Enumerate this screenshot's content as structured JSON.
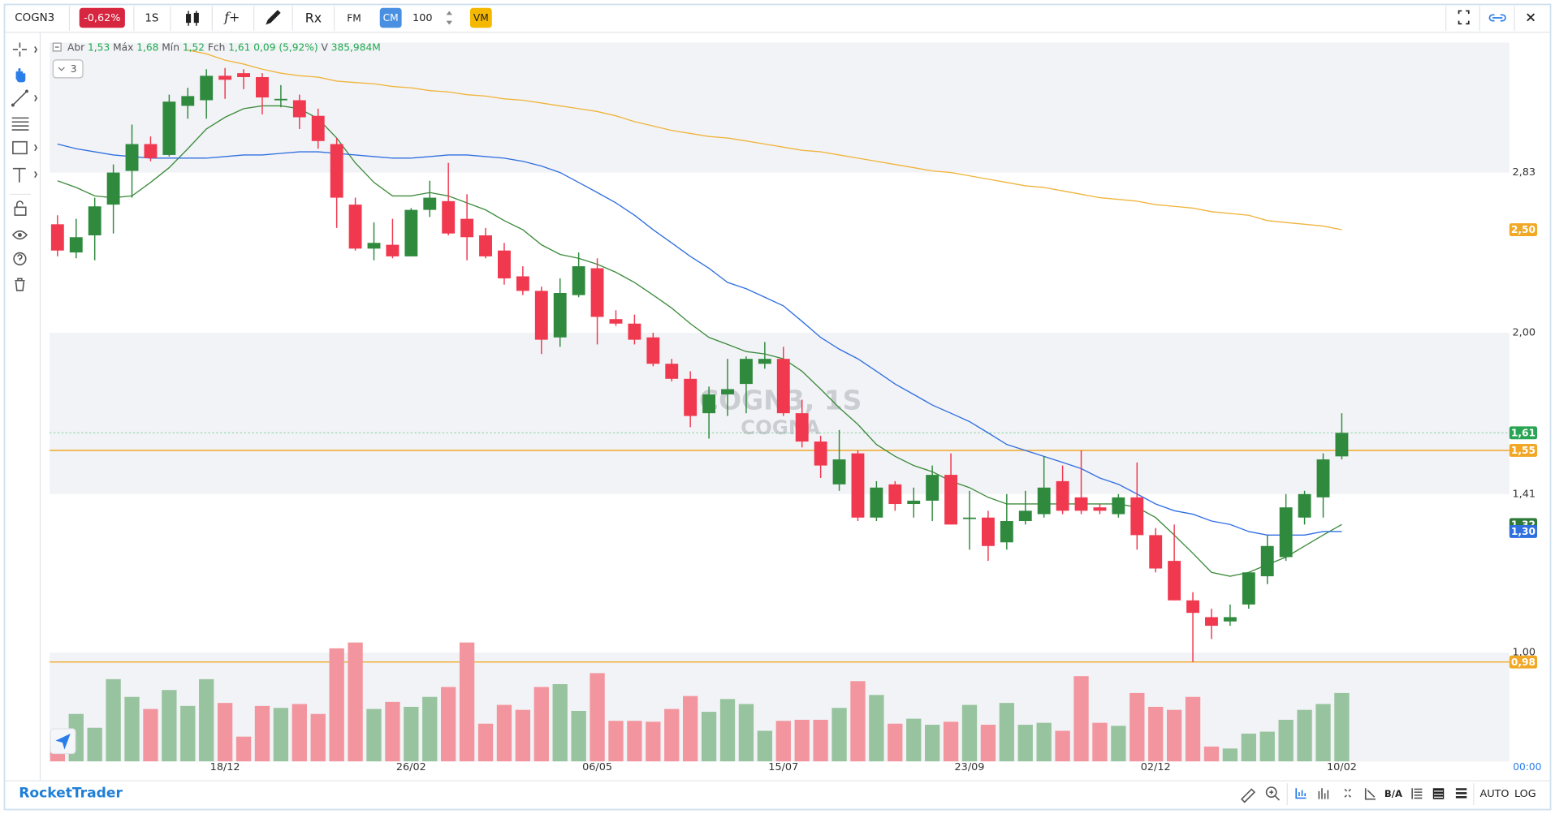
{
  "toolbar": {
    "symbol": "COGN3",
    "change": "-0,62%",
    "interval": "1S",
    "function": "f+",
    "rx": "Rx",
    "fm": "FM",
    "cm": "CM",
    "count": "100",
    "vm": "VM"
  },
  "legend": {
    "open_label": "Abr",
    "open": "1,53",
    "high_label": "Máx",
    "high": "1,68",
    "low_label": "Mín",
    "low": "1,52",
    "close_label": "Fch",
    "close": "1,61",
    "change": "0,09 (5,92%)",
    "volume_label": "V",
    "volume": "385,984M",
    "studies": "3"
  },
  "chart_data": {
    "type": "candlestick",
    "watermark_title": "COGN3, 1S",
    "watermark_subtitle": "COGNA",
    "categories": [
      null,
      null,
      null,
      null,
      null,
      null,
      null,
      null,
      null,
      "18/12",
      null,
      null,
      null,
      null,
      null,
      null,
      null,
      null,
      null,
      "26/02",
      null,
      null,
      null,
      null,
      null,
      null,
      null,
      null,
      null,
      "06/05",
      null,
      null,
      null,
      null,
      null,
      null,
      null,
      null,
      null,
      "15/07",
      null,
      null,
      null,
      null,
      null,
      null,
      null,
      null,
      null,
      "23/09",
      null,
      null,
      null,
      null,
      null,
      null,
      null,
      null,
      null,
      "02/12",
      null,
      null,
      null,
      null,
      null,
      null,
      null,
      null,
      null,
      "10/02"
    ],
    "open": [
      2.53,
      2.38,
      2.47,
      2.64,
      2.84,
      3.01,
      2.94,
      3.27,
      3.31,
      3.49,
      3.51,
      3.48,
      3.31,
      3.31,
      3.2,
      3.01,
      2.64,
      2.4,
      2.42,
      2.36,
      2.61,
      2.66,
      2.56,
      2.47,
      2.39,
      2.26,
      2.19,
      1.98,
      2.17,
      2.3,
      2.06,
      2.04,
      1.98,
      1.87,
      1.81,
      1.68,
      1.75,
      1.79,
      1.87,
      1.89,
      1.68,
      1.58,
      1.44,
      1.54,
      1.34,
      1.44,
      1.38,
      1.39,
      1.47,
      1.34,
      1.34,
      1.27,
      1.33,
      1.35,
      1.45,
      1.4,
      1.37,
      1.35,
      1.4,
      1.29,
      1.22,
      1.12,
      1.08,
      1.07,
      1.11,
      1.18,
      1.23,
      1.34,
      1.4,
      1.53
    ],
    "high": [
      2.58,
      2.56,
      2.68,
      2.88,
      3.14,
      3.06,
      3.35,
      3.4,
      3.54,
      3.55,
      3.54,
      3.51,
      3.42,
      3.35,
      3.25,
      3.05,
      2.68,
      2.54,
      2.56,
      2.62,
      2.78,
      2.89,
      2.7,
      2.51,
      2.43,
      2.31,
      2.21,
      2.25,
      2.38,
      2.35,
      2.1,
      2.08,
      2.0,
      1.89,
      1.84,
      1.78,
      1.89,
      1.9,
      1.96,
      1.94,
      1.73,
      1.6,
      1.62,
      1.55,
      1.45,
      1.45,
      1.43,
      1.5,
      1.54,
      1.42,
      1.36,
      1.41,
      1.42,
      1.53,
      1.5,
      1.55,
      1.38,
      1.41,
      1.51,
      1.31,
      1.32,
      1.14,
      1.1,
      1.11,
      1.19,
      1.29,
      1.41,
      1.42,
      1.54,
      1.68
    ],
    "low": [
      2.36,
      2.35,
      2.34,
      2.48,
      2.68,
      2.9,
      2.93,
      3.18,
      3.18,
      3.32,
      3.39,
      3.21,
      3.26,
      3.11,
      2.98,
      2.51,
      2.39,
      2.34,
      2.35,
      2.36,
      2.57,
      2.47,
      2.34,
      2.35,
      2.22,
      2.17,
      1.91,
      1.94,
      2.16,
      1.95,
      2.03,
      1.95,
      1.86,
      1.8,
      1.63,
      1.59,
      1.67,
      1.68,
      1.85,
      1.67,
      1.56,
      1.46,
      1.42,
      1.33,
      1.33,
      1.36,
      1.34,
      1.33,
      1.32,
      1.25,
      1.22,
      1.25,
      1.32,
      1.34,
      1.35,
      1.35,
      1.35,
      1.34,
      1.25,
      1.19,
      1.12,
      0.98,
      1.03,
      1.06,
      1.1,
      1.16,
      1.22,
      1.32,
      1.34,
      1.52
    ],
    "close": [
      2.39,
      2.46,
      2.63,
      2.83,
      3.01,
      2.92,
      3.3,
      3.34,
      3.49,
      3.46,
      3.48,
      3.33,
      3.32,
      3.19,
      3.03,
      2.68,
      2.4,
      2.43,
      2.36,
      2.61,
      2.68,
      2.48,
      2.46,
      2.36,
      2.25,
      2.19,
      1.97,
      2.18,
      2.31,
      2.07,
      2.04,
      1.97,
      1.87,
      1.81,
      1.67,
      1.75,
      1.77,
      1.89,
      1.89,
      1.68,
      1.58,
      1.5,
      1.52,
      1.34,
      1.43,
      1.38,
      1.39,
      1.47,
      1.32,
      1.34,
      1.26,
      1.33,
      1.36,
      1.43,
      1.36,
      1.36,
      1.36,
      1.4,
      1.29,
      1.2,
      1.12,
      1.09,
      1.06,
      1.08,
      1.19,
      1.26,
      1.37,
      1.41,
      1.52,
      1.61
    ],
    "volume": [
      90,
      268,
      190,
      464,
      364,
      296,
      403,
      313,
      464,
      330,
      140,
      313,
      302,
      324,
      268,
      638,
      671,
      296,
      336,
      308,
      364,
      420,
      671,
      213,
      319,
      291,
      420,
      436,
      285,
      498,
      229,
      229,
      224,
      296,
      369,
      280,
      352,
      324,
      173,
      229,
      235,
      235,
      302,
      453,
      375,
      213,
      241,
      207,
      224,
      319,
      207,
      330,
      207,
      218,
      173,
      481,
      218,
      201,
      386,
      308,
      291,
      364,
      84,
      73,
      157,
      168,
      235,
      291,
      324,
      385.984
    ],
    "up_color": "#2f8a3e",
    "down_color": "#f0384f",
    "volume_up_color": "#97c49e",
    "volume_down_color": "#f3959e",
    "averages": [
      {
        "color": "#3d8b3d",
        "values": [
          2.78,
          2.74,
          2.69,
          2.68,
          2.69,
          2.77,
          2.86,
          2.98,
          3.11,
          3.19,
          3.25,
          3.27,
          3.27,
          3.25,
          3.18,
          3.05,
          2.89,
          2.77,
          2.69,
          2.69,
          2.71,
          2.69,
          2.65,
          2.61,
          2.55,
          2.5,
          2.42,
          2.37,
          2.35,
          2.32,
          2.28,
          2.23,
          2.17,
          2.11,
          2.04,
          1.98,
          1.95,
          1.92,
          1.91,
          1.89,
          1.84,
          1.77,
          1.7,
          1.64,
          1.57,
          1.53,
          1.5,
          1.48,
          1.45,
          1.43,
          1.4,
          1.38,
          1.38,
          1.38,
          1.38,
          1.38,
          1.38,
          1.38,
          1.37,
          1.34,
          1.29,
          1.24,
          1.19,
          1.18,
          1.19,
          1.21,
          1.23,
          1.26,
          1.29,
          1.32
        ]
      },
      {
        "color": "#2f6fe0",
        "values": [
          3.01,
          2.98,
          2.96,
          2.94,
          2.93,
          2.92,
          2.92,
          2.92,
          2.92,
          2.93,
          2.94,
          2.94,
          2.95,
          2.96,
          2.96,
          2.95,
          2.94,
          2.93,
          2.92,
          2.92,
          2.93,
          2.94,
          2.94,
          2.93,
          2.92,
          2.9,
          2.87,
          2.83,
          2.77,
          2.71,
          2.65,
          2.58,
          2.5,
          2.43,
          2.36,
          2.3,
          2.23,
          2.2,
          2.16,
          2.12,
          2.05,
          1.98,
          1.93,
          1.89,
          1.84,
          1.79,
          1.75,
          1.71,
          1.68,
          1.65,
          1.61,
          1.57,
          1.55,
          1.53,
          1.51,
          1.49,
          1.46,
          1.44,
          1.41,
          1.38,
          1.36,
          1.35,
          1.33,
          1.32,
          1.3,
          1.29,
          1.29,
          1.29,
          1.3,
          1.3
        ]
      },
      {
        "color": "#f0b43c",
        "values": [
          null,
          null,
          null,
          null,
          null,
          null,
          null,
          3.69,
          3.66,
          3.61,
          3.58,
          3.54,
          3.51,
          3.49,
          3.48,
          3.45,
          3.44,
          3.43,
          3.41,
          3.4,
          3.38,
          3.37,
          3.35,
          3.34,
          3.32,
          3.31,
          3.29,
          3.27,
          3.25,
          3.23,
          3.2,
          3.16,
          3.13,
          3.1,
          3.08,
          3.06,
          3.05,
          3.03,
          3.01,
          2.99,
          2.97,
          2.96,
          2.94,
          2.92,
          2.9,
          2.88,
          2.86,
          2.84,
          2.83,
          2.81,
          2.79,
          2.77,
          2.75,
          2.74,
          2.72,
          2.7,
          2.68,
          2.67,
          2.66,
          2.64,
          2.63,
          2.62,
          2.6,
          2.59,
          2.58,
          2.55,
          2.54,
          2.53,
          2.52,
          2.5
        ]
      }
    ],
    "ylim": [
      0.79,
      3.75
    ],
    "log": true,
    "yticks": [
      {
        "value": 2.83,
        "label": "2,83"
      },
      {
        "value": 2.0,
        "label": "2,00"
      },
      {
        "value": 1.41,
        "label": "1,41"
      },
      {
        "value": 1.0,
        "label": "1,00"
      }
    ],
    "band_color": "#f2f3f6",
    "price_labels": [
      {
        "value": 2.5,
        "label": "2,50",
        "color": "#f0a826"
      },
      {
        "value": 1.61,
        "label": "1,61",
        "color": "#27a552",
        "line": "dotted",
        "line_color": "#a8dcbc"
      },
      {
        "value": 1.55,
        "label": "1,55",
        "color": "#f0a826",
        "line": "solid",
        "line_color": "#f0a826"
      },
      {
        "value": 1.32,
        "label": "1,32",
        "color": "#2f7a3a"
      },
      {
        "value": 1.3,
        "label": "1,30",
        "color": "#2f6fe0"
      },
      {
        "value": 0.98,
        "label": "0,98",
        "color": "#f0a826",
        "line": "solid",
        "line_color": "#f0a826"
      }
    ]
  },
  "footer": {
    "brand": "RocketTrader",
    "ba": "B/A",
    "auto": "AUTO",
    "log": "LOG",
    "time": "00:00"
  }
}
